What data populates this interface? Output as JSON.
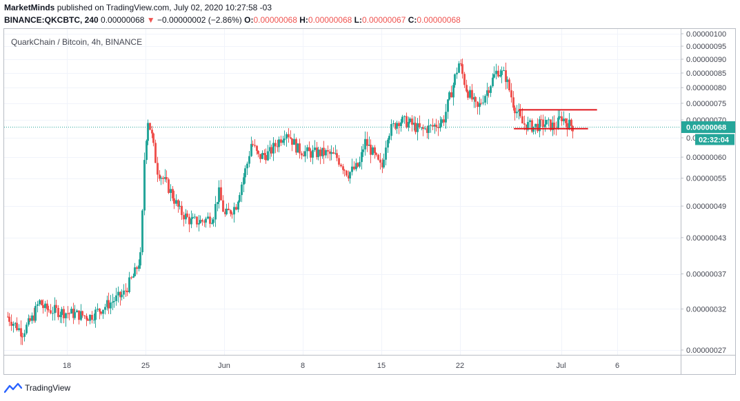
{
  "header": {
    "author": "MarketMinds",
    "published": "published on TradingView.com, July 02, 2020 10:27:58 -03",
    "symbol_line": "BINANCE:QKCBTC, 240",
    "last_price": "0.00000068",
    "change_arrow": "▼",
    "change": "−0.00000002 (−2.86%)",
    "o_label": "O:",
    "o_value": "0.00000068",
    "h_label": "H:",
    "h_value": "0.00000068",
    "l_label": "L:",
    "l_value": "0.00000067",
    "c_label": "C:",
    "c_value": "0.00000068"
  },
  "footer": {
    "brand": "TradingView"
  },
  "colors": {
    "up": "#26a69a",
    "down": "#ef5350",
    "annotation": "#e0151b",
    "last": "#26a69a"
  },
  "chart_data": {
    "type": "candlestick",
    "title": "QuarkChain / Bitcoin, 4h, BINANCE",
    "y_ticks": [
      "0.00000100",
      "0.00000095",
      "0.00000090",
      "0.00000085",
      "0.00000080",
      "0.00000075",
      "0.00000070",
      "0.00000065",
      "0.00000060",
      "0.00000055",
      "0.00000049",
      "0.00000043",
      "0.00000037",
      "0.00000032",
      "0.00000027"
    ],
    "y_tick_values": [
      100,
      95,
      90,
      85,
      80,
      75,
      70,
      65,
      60,
      55,
      49,
      43,
      37,
      32,
      27
    ],
    "y_scale": "log",
    "x_ticks": [
      {
        "label": "18",
        "day": 18
      },
      {
        "label": "25",
        "day": 25
      },
      {
        "label": "Jun",
        "day": 32
      },
      {
        "label": "8",
        "day": 39
      },
      {
        "label": "15",
        "day": 46
      },
      {
        "label": "22",
        "day": 53
      },
      {
        "label": "Jul",
        "day": 62
      },
      {
        "label": "6",
        "day": 67
      }
    ],
    "x_range_days": [
      12.7,
      72
    ],
    "last_price_label": "0.00000068",
    "countdown_label": "02:32:04",
    "price_units_note": "prices in 1e-8 BTC",
    "last_price": 68,
    "support_level": 67.5,
    "resistance_level": 73,
    "support_line_days": [
      57.8,
      64.4
    ],
    "resistance_line_days": [
      58.2,
      65.2
    ],
    "anchors": [
      {
        "day": 12.7,
        "price": 31
      },
      {
        "day": 14.0,
        "price": 29
      },
      {
        "day": 15.0,
        "price": 31
      },
      {
        "day": 15.5,
        "price": 33
      },
      {
        "day": 16.0,
        "price": 32
      },
      {
        "day": 18.0,
        "price": 31.5
      },
      {
        "day": 20.0,
        "price": 31
      },
      {
        "day": 21.0,
        "price": 32
      },
      {
        "day": 22.0,
        "price": 33
      },
      {
        "day": 23.0,
        "price": 34
      },
      {
        "day": 24.0,
        "price": 37
      },
      {
        "day": 24.6,
        "price": 40
      },
      {
        "day": 24.9,
        "price": 62
      },
      {
        "day": 25.2,
        "price": 70
      },
      {
        "day": 25.5,
        "price": 66
      },
      {
        "day": 26.0,
        "price": 57
      },
      {
        "day": 27.0,
        "price": 53
      },
      {
        "day": 28.0,
        "price": 48
      },
      {
        "day": 29.0,
        "price": 46
      },
      {
        "day": 30.0,
        "price": 46
      },
      {
        "day": 31.0,
        "price": 47
      },
      {
        "day": 31.5,
        "price": 52
      },
      {
        "day": 32.0,
        "price": 47
      },
      {
        "day": 33.0,
        "price": 49
      },
      {
        "day": 34.0,
        "price": 58
      },
      {
        "day": 34.4,
        "price": 64
      },
      {
        "day": 35.0,
        "price": 60
      },
      {
        "day": 36.0,
        "price": 61
      },
      {
        "day": 36.8,
        "price": 64
      },
      {
        "day": 37.5,
        "price": 67
      },
      {
        "day": 38.5,
        "price": 62
      },
      {
        "day": 39.5,
        "price": 61
      },
      {
        "day": 41.0,
        "price": 61
      },
      {
        "day": 42.0,
        "price": 60
      },
      {
        "day": 43.0,
        "price": 56
      },
      {
        "day": 44.0,
        "price": 58
      },
      {
        "day": 44.5,
        "price": 64
      },
      {
        "day": 45.0,
        "price": 62
      },
      {
        "day": 46.0,
        "price": 57
      },
      {
        "day": 46.5,
        "price": 66
      },
      {
        "day": 47.5,
        "price": 70
      },
      {
        "day": 48.5,
        "price": 69
      },
      {
        "day": 49.5,
        "price": 67
      },
      {
        "day": 50.5,
        "price": 68
      },
      {
        "day": 51.5,
        "price": 70
      },
      {
        "day": 52.3,
        "price": 80
      },
      {
        "day": 52.9,
        "price": 89
      },
      {
        "day": 53.5,
        "price": 80
      },
      {
        "day": 54.5,
        "price": 73
      },
      {
        "day": 55.5,
        "price": 80
      },
      {
        "day": 56.3,
        "price": 86
      },
      {
        "day": 57.0,
        "price": 84
      },
      {
        "day": 57.7,
        "price": 75
      },
      {
        "day": 58.5,
        "price": 69
      },
      {
        "day": 59.5,
        "price": 68
      },
      {
        "day": 60.5,
        "price": 69
      },
      {
        "day": 61.5,
        "price": 68
      },
      {
        "day": 62.0,
        "price": 71
      },
      {
        "day": 62.5,
        "price": 69
      },
      {
        "day": 63.1,
        "price": 68
      }
    ]
  }
}
